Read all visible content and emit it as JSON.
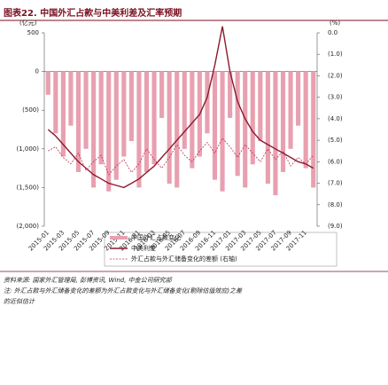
{
  "chart_data": {
    "type": "bar",
    "title": "图表22. 中国外汇占款与中美利差及汇率预期",
    "y_label": "(亿元)",
    "y2_label": "(%)",
    "categories": [
      "2015-01",
      null,
      "2015-03",
      null,
      "2015-05",
      null,
      "2015-07",
      null,
      "2015-09",
      null,
      "2015-11",
      null,
      "2016-01",
      null,
      "2016-03",
      null,
      "2016-05",
      null,
      "2016-07",
      null,
      "2016-09",
      null,
      "2016-11",
      null,
      "2017-01",
      null,
      "2017-03",
      null,
      "2017-05",
      null,
      "2017-07",
      null,
      "2017-09",
      null,
      "2017-11",
      null
    ],
    "series": [
      {
        "name": "中国外汇占款变化",
        "color": "#e8a0b0",
        "axis": "y",
        "values": [
          -300,
          -800,
          -1100,
          -700,
          -1300,
          -1000,
          -1500,
          -1200,
          -1550,
          -1400,
          -1100,
          -900,
          -1500,
          -1300,
          -1200,
          -600,
          -1450,
          -1500,
          -1000,
          -1250,
          -1100,
          -800,
          -1400,
          -1550,
          -600,
          -1350,
          -1500,
          -1200,
          -900,
          -1450,
          -1600,
          -1300,
          -1000,
          -700,
          -1250,
          -1500
        ]
      },
      {
        "name": "中美利差",
        "color": "#8b1a2b",
        "axis": "y2",
        "values": [
          -4.5,
          -4.8,
          -5.2,
          -5.6,
          -6.0,
          -6.3,
          -6.6,
          -6.8,
          -7.0,
          -7.1,
          -7.2,
          -7.0,
          -6.8,
          -6.5,
          -6.2,
          -5.8,
          -5.4,
          -5.0,
          -4.6,
          -4.2,
          -3.8,
          -3.0,
          -1.5,
          0.3,
          -1.8,
          -3.2,
          -4.0,
          -4.6,
          -5.0,
          -5.2,
          -5.4,
          -5.6,
          -5.8,
          -6.0,
          -6.1,
          -6.3
        ]
      },
      {
        "name": "外汇占款与外汇储备变化的差额 (右轴)",
        "color": "#c03050",
        "axis": "y2",
        "dash": true,
        "values": [
          -5.5,
          -5.3,
          -5.8,
          -6.1,
          -5.6,
          -6.4,
          -6.0,
          -5.7,
          -6.6,
          -6.2,
          -5.9,
          -6.5,
          -6.1,
          -5.4,
          -5.9,
          -6.3,
          -5.8,
          -5.2,
          -5.7,
          -6.0,
          -5.5,
          -5.1,
          -5.6,
          -4.9,
          -5.3,
          -5.8,
          -5.2,
          -5.6,
          -6.0,
          -5.4,
          -5.9,
          -5.5,
          -6.2,
          -5.8,
          -6.1,
          -5.7
        ]
      }
    ],
    "ylim": [
      -2000,
      500
    ],
    "yticks": [
      {
        "value": -2000,
        "label": "(2,000)"
      },
      {
        "value": -1500,
        "label": "(1,500)"
      },
      {
        "value": -1000,
        "label": "(1,000)"
      },
      {
        "value": -500,
        "label": "(500)"
      },
      0,
      500
    ],
    "y2lim": [
      -9,
      0
    ],
    "y2ticks": [
      {
        "value": 0,
        "label": "0.0"
      },
      {
        "value": -1,
        "label": "(1.0)"
      },
      {
        "value": -2,
        "label": "(2.0)"
      },
      {
        "value": -3,
        "label": "(3.0)"
      },
      {
        "value": -4,
        "label": "(4.0)"
      },
      {
        "value": -5,
        "label": "(5.0)"
      },
      {
        "value": -6,
        "label": "(6.0)"
      },
      {
        "value": -7,
        "label": "(7.0)"
      },
      {
        "value": -8,
        "label": "(8.0)"
      },
      {
        "value": -9,
        "label": "(9.0)"
      }
    ],
    "source": "资料来源: 国家外汇管理局, 彭博资讯, Wind, 中金公司研究部",
    "note": "注: 外汇占款与外汇储备变化的差额为外汇占款变化与外汇储备变化(剔除估值效应)之差",
    "note2": "的近似估计"
  }
}
